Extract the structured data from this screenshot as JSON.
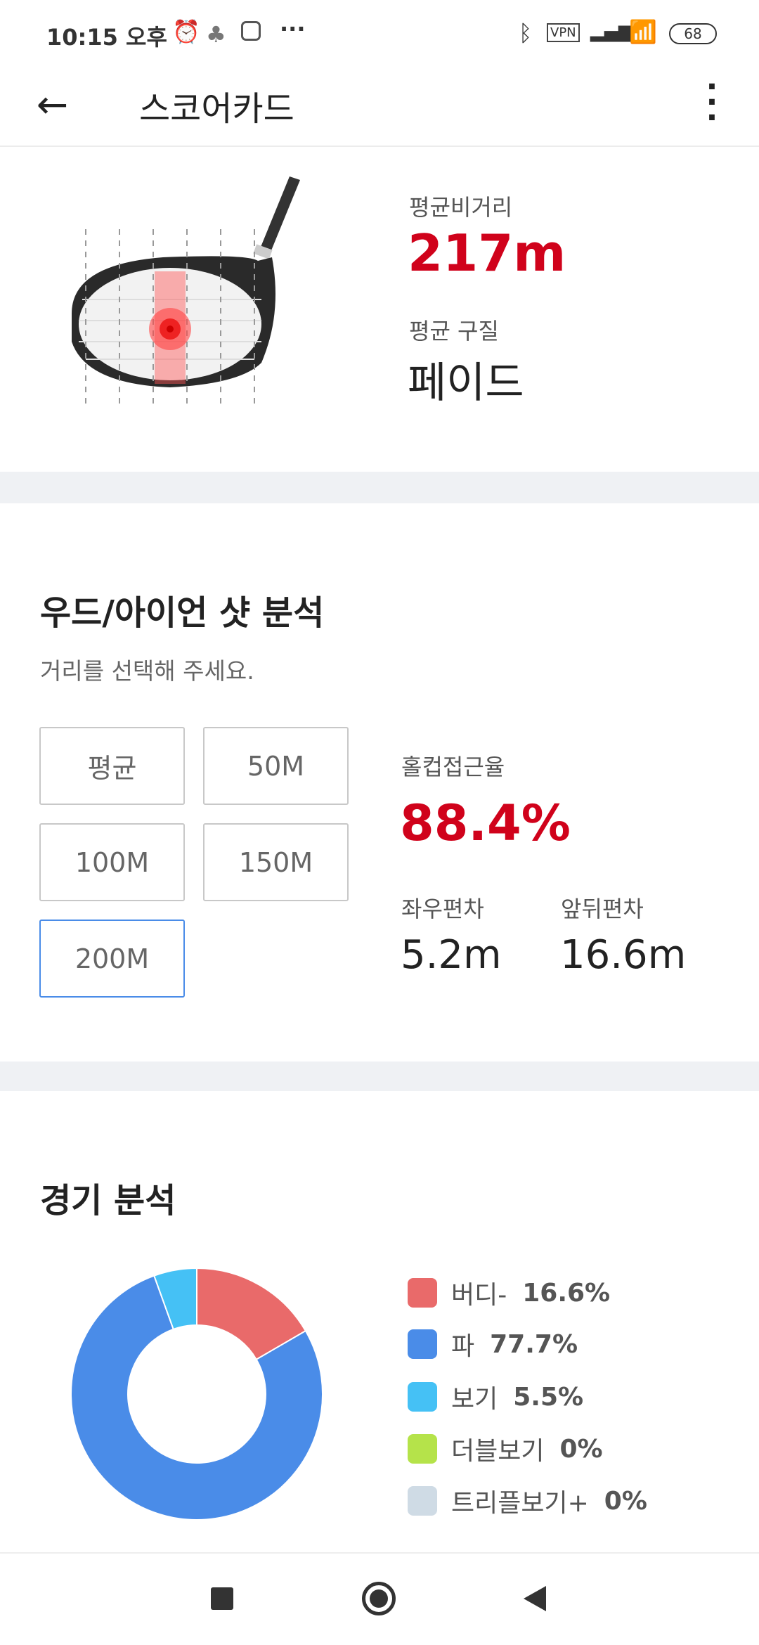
{
  "status_bar": {
    "time": "10:15 오후",
    "vpn": "VPN",
    "battery": "68",
    "icons": [
      "alarm-icon",
      "app-icon",
      "instagram-icon",
      "more-icon",
      "bluetooth-icon",
      "vpn-icon",
      "signal-icon",
      "wifi-icon",
      "battery-icon"
    ]
  },
  "header": {
    "title": "스코어카드",
    "back_icon": "arrow-left-icon",
    "menu_icon": "more-vertical-icon"
  },
  "summary": {
    "avg_distance_label": "평균비거리",
    "avg_distance": "217m",
    "avg_shape_label": "평균 구질",
    "avg_shape": "페이드"
  },
  "shot_analysis": {
    "title": "우드/아이언 샷 분석",
    "subtitle": "거리를 선택해 주세요.",
    "buttons": [
      "평균",
      "50M",
      "100M",
      "150M",
      "200M"
    ],
    "selected": "200M",
    "approach_label": "홀컵접근율",
    "approach": "88.4%",
    "lr_label": "좌우편차",
    "lr": "5.2m",
    "fb_label": "앞뒤편차",
    "fb": "16.6m"
  },
  "game_analysis": {
    "title": "경기 분석"
  },
  "chart_data": {
    "type": "pie",
    "donut": true,
    "categories": [
      "버디-",
      "파",
      "보기",
      "더블보기",
      "트리플보기+"
    ],
    "values": [
      16.6,
      77.7,
      5.5,
      0,
      0
    ],
    "labels": [
      "16.6%",
      "77.7%",
      "5.5%",
      "0%",
      "0%"
    ],
    "colors": [
      "#e96a6a",
      "#4a8ce8",
      "#45c1f5",
      "#b5e34a",
      "#cfdbe5"
    ],
    "legend": "right"
  },
  "colors": {
    "accent_red": "#d0021b",
    "selected_border": "#4a8ce8"
  },
  "nav": {
    "icons": [
      "recents-square-icon",
      "home-circle-icon",
      "back-triangle-icon"
    ]
  }
}
